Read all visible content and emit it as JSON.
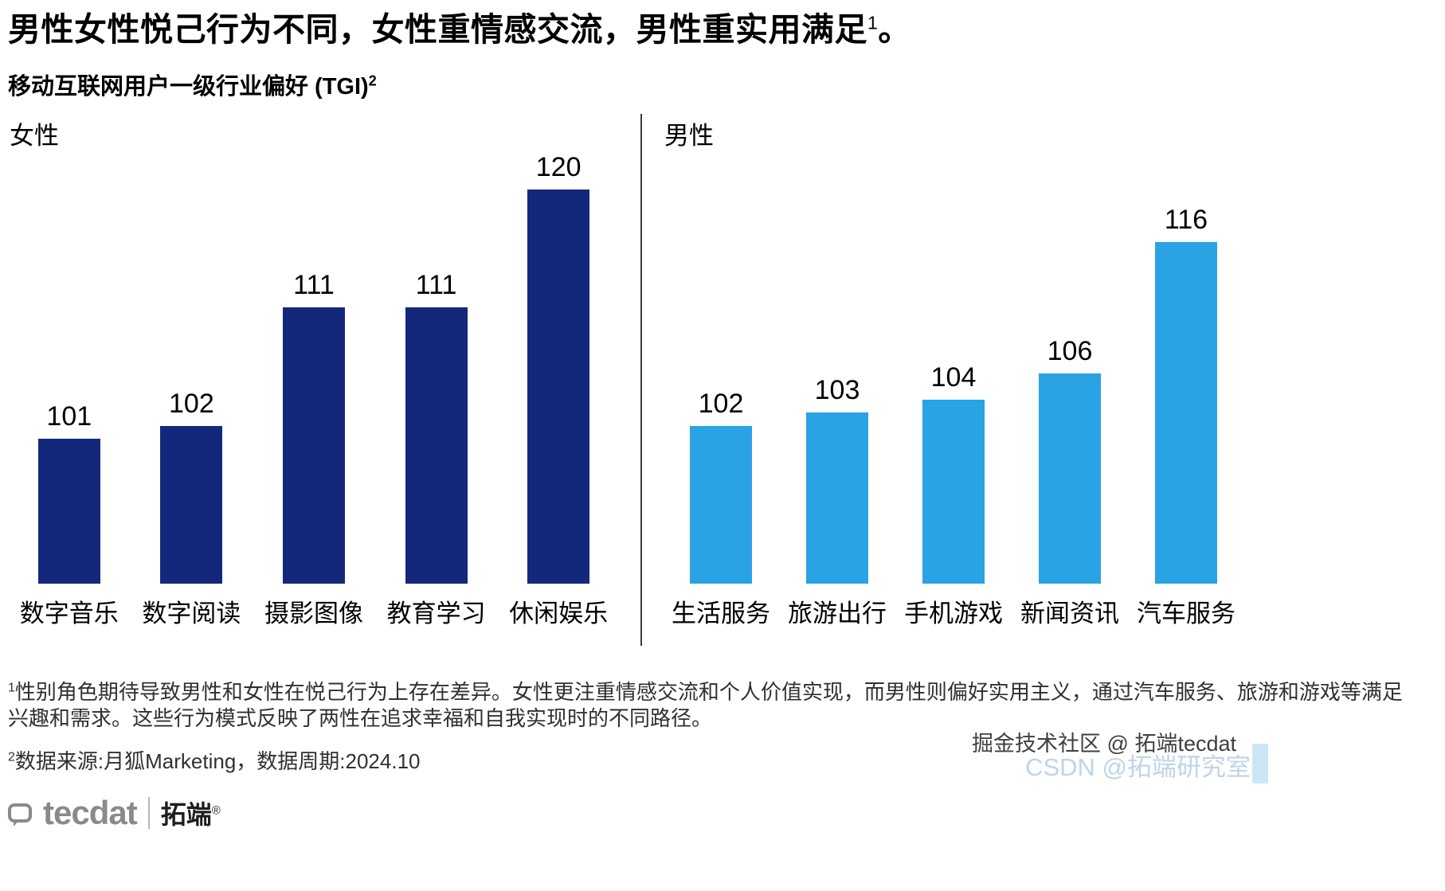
{
  "header": {
    "title_main": "男性女性悦己行为不同，女性重情感交流，男性重实用满足",
    "title_sup": "1",
    "title_tail": "。",
    "subtitle_main": "移动互联网用户一级行业偏好 (TGI)",
    "subtitle_sup": "2"
  },
  "chart_data": [
    {
      "type": "bar",
      "title": "女性",
      "categories": [
        "数字音乐",
        "数字阅读",
        "摄影图像",
        "教育学习",
        "休闲娱乐"
      ],
      "values": [
        101,
        102,
        111,
        111,
        120
      ],
      "bar_color": "#14287B",
      "ylim": [
        90,
        125
      ],
      "grid": false,
      "legend": "none"
    },
    {
      "type": "bar",
      "title": "男性",
      "categories": [
        "生活服务",
        "旅游出行",
        "手机游戏",
        "新闻资讯",
        "汽车服务"
      ],
      "values": [
        102,
        103,
        104,
        106,
        116
      ],
      "bar_color": "#29A3E3",
      "ylim": [
        90,
        125
      ],
      "grid": false,
      "legend": "none"
    }
  ],
  "footnotes": {
    "note1_sup": "1",
    "note1_text": "性别角色期待导致男性和女性在悦己行为上存在差异。女性更注重情感交流和个人价值实现，而男性则偏好实用主义，通过汽车服务、旅游和游戏等满足兴趣和需求。这些行为模式反映了两性在追求幸福和自我实现时的不同路径。",
    "note2_sup": "2",
    "note2_text": "数据来源:月狐Marketing，数据周期:2024.10"
  },
  "branding": {
    "logo_en": "tecdat",
    "logo_cn": "拓端",
    "logo_reg": "®",
    "watermark_primary": "掘金技术社区 @ 拓端tecdat",
    "watermark_secondary": "CSDN @拓端研究室"
  }
}
